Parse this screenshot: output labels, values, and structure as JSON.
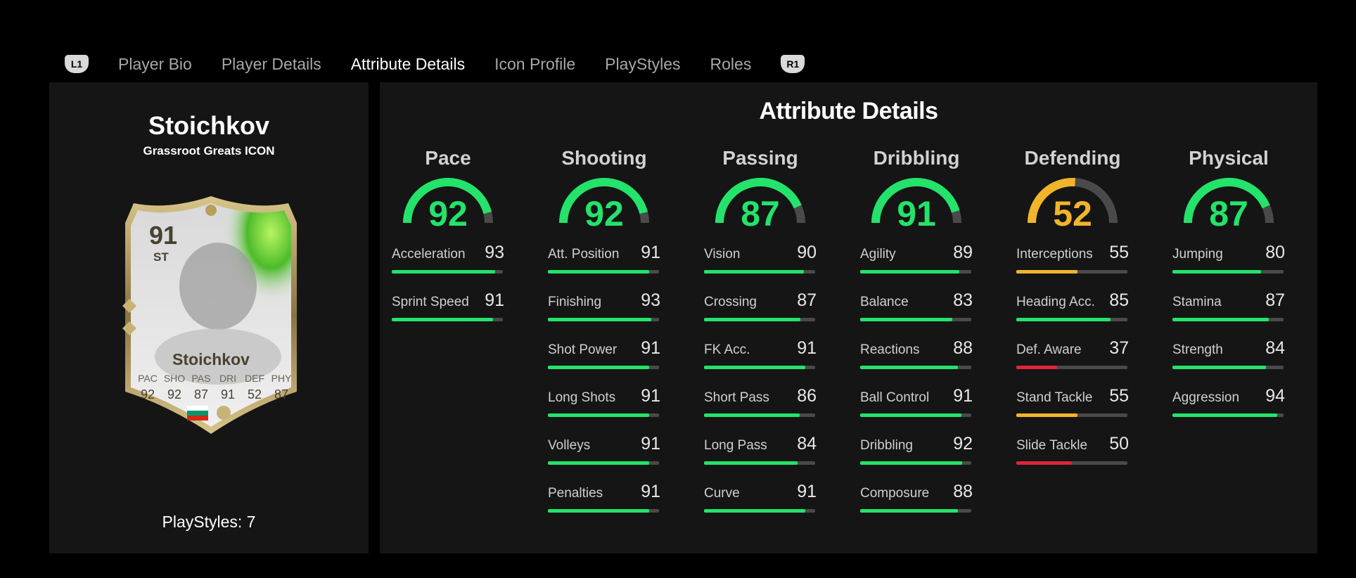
{
  "tabs": {
    "left_button": "L1",
    "right_button": "R1",
    "items": [
      {
        "label": "Player Bio",
        "active": false
      },
      {
        "label": "Player Details",
        "active": false
      },
      {
        "label": "Attribute Details",
        "active": true
      },
      {
        "label": "Icon Profile",
        "active": false
      },
      {
        "label": "PlayStyles",
        "active": false
      },
      {
        "label": "Roles",
        "active": false
      }
    ]
  },
  "player": {
    "name": "Stoichkov",
    "subtitle": "Grassroot Greats ICON",
    "playstyles_label": "PlayStyles: 7",
    "card": {
      "rating": "91",
      "position": "ST",
      "name": "Stoichkov",
      "stat_labels": [
        "PAC",
        "SHO",
        "PAS",
        "DRI",
        "DEF",
        "PHY"
      ],
      "stat_values": [
        "92",
        "92",
        "87",
        "91",
        "52",
        "87"
      ]
    }
  },
  "colors": {
    "green": "#23e36b",
    "yellow": "#f1b52a",
    "red": "#e0243a",
    "track": "#4a4a4a"
  },
  "panel_title": "Attribute Details",
  "categories": [
    {
      "name": "Pace",
      "value": 92,
      "color": "green",
      "stats": [
        {
          "label": "Acceleration",
          "value": 93,
          "color": "green"
        },
        {
          "label": "Sprint Speed",
          "value": 91,
          "color": "green"
        }
      ]
    },
    {
      "name": "Shooting",
      "value": 92,
      "color": "green",
      "stats": [
        {
          "label": "Att. Position",
          "value": 91,
          "color": "green"
        },
        {
          "label": "Finishing",
          "value": 93,
          "color": "green"
        },
        {
          "label": "Shot Power",
          "value": 91,
          "color": "green"
        },
        {
          "label": "Long Shots",
          "value": 91,
          "color": "green"
        },
        {
          "label": "Volleys",
          "value": 91,
          "color": "green"
        },
        {
          "label": "Penalties",
          "value": 91,
          "color": "green"
        }
      ]
    },
    {
      "name": "Passing",
      "value": 87,
      "color": "green",
      "stats": [
        {
          "label": "Vision",
          "value": 90,
          "color": "green"
        },
        {
          "label": "Crossing",
          "value": 87,
          "color": "green"
        },
        {
          "label": "FK Acc.",
          "value": 91,
          "color": "green"
        },
        {
          "label": "Short Pass",
          "value": 86,
          "color": "green"
        },
        {
          "label": "Long Pass",
          "value": 84,
          "color": "green"
        },
        {
          "label": "Curve",
          "value": 91,
          "color": "green"
        }
      ]
    },
    {
      "name": "Dribbling",
      "value": 91,
      "color": "green",
      "stats": [
        {
          "label": "Agility",
          "value": 89,
          "color": "green"
        },
        {
          "label": "Balance",
          "value": 83,
          "color": "green"
        },
        {
          "label": "Reactions",
          "value": 88,
          "color": "green"
        },
        {
          "label": "Ball Control",
          "value": 91,
          "color": "green"
        },
        {
          "label": "Dribbling",
          "value": 92,
          "color": "green"
        },
        {
          "label": "Composure",
          "value": 88,
          "color": "green"
        }
      ]
    },
    {
      "name": "Defending",
      "value": 52,
      "color": "yellow",
      "stats": [
        {
          "label": "Interceptions",
          "value": 55,
          "color": "yellow"
        },
        {
          "label": "Heading Acc.",
          "value": 85,
          "color": "green"
        },
        {
          "label": "Def. Aware",
          "value": 37,
          "color": "red"
        },
        {
          "label": "Stand Tackle",
          "value": 55,
          "color": "yellow"
        },
        {
          "label": "Slide Tackle",
          "value": 50,
          "color": "red"
        }
      ]
    },
    {
      "name": "Physical",
      "value": 87,
      "color": "green",
      "stats": [
        {
          "label": "Jumping",
          "value": 80,
          "color": "green"
        },
        {
          "label": "Stamina",
          "value": 87,
          "color": "green"
        },
        {
          "label": "Strength",
          "value": 84,
          "color": "green"
        },
        {
          "label": "Aggression",
          "value": 94,
          "color": "green"
        }
      ]
    }
  ]
}
